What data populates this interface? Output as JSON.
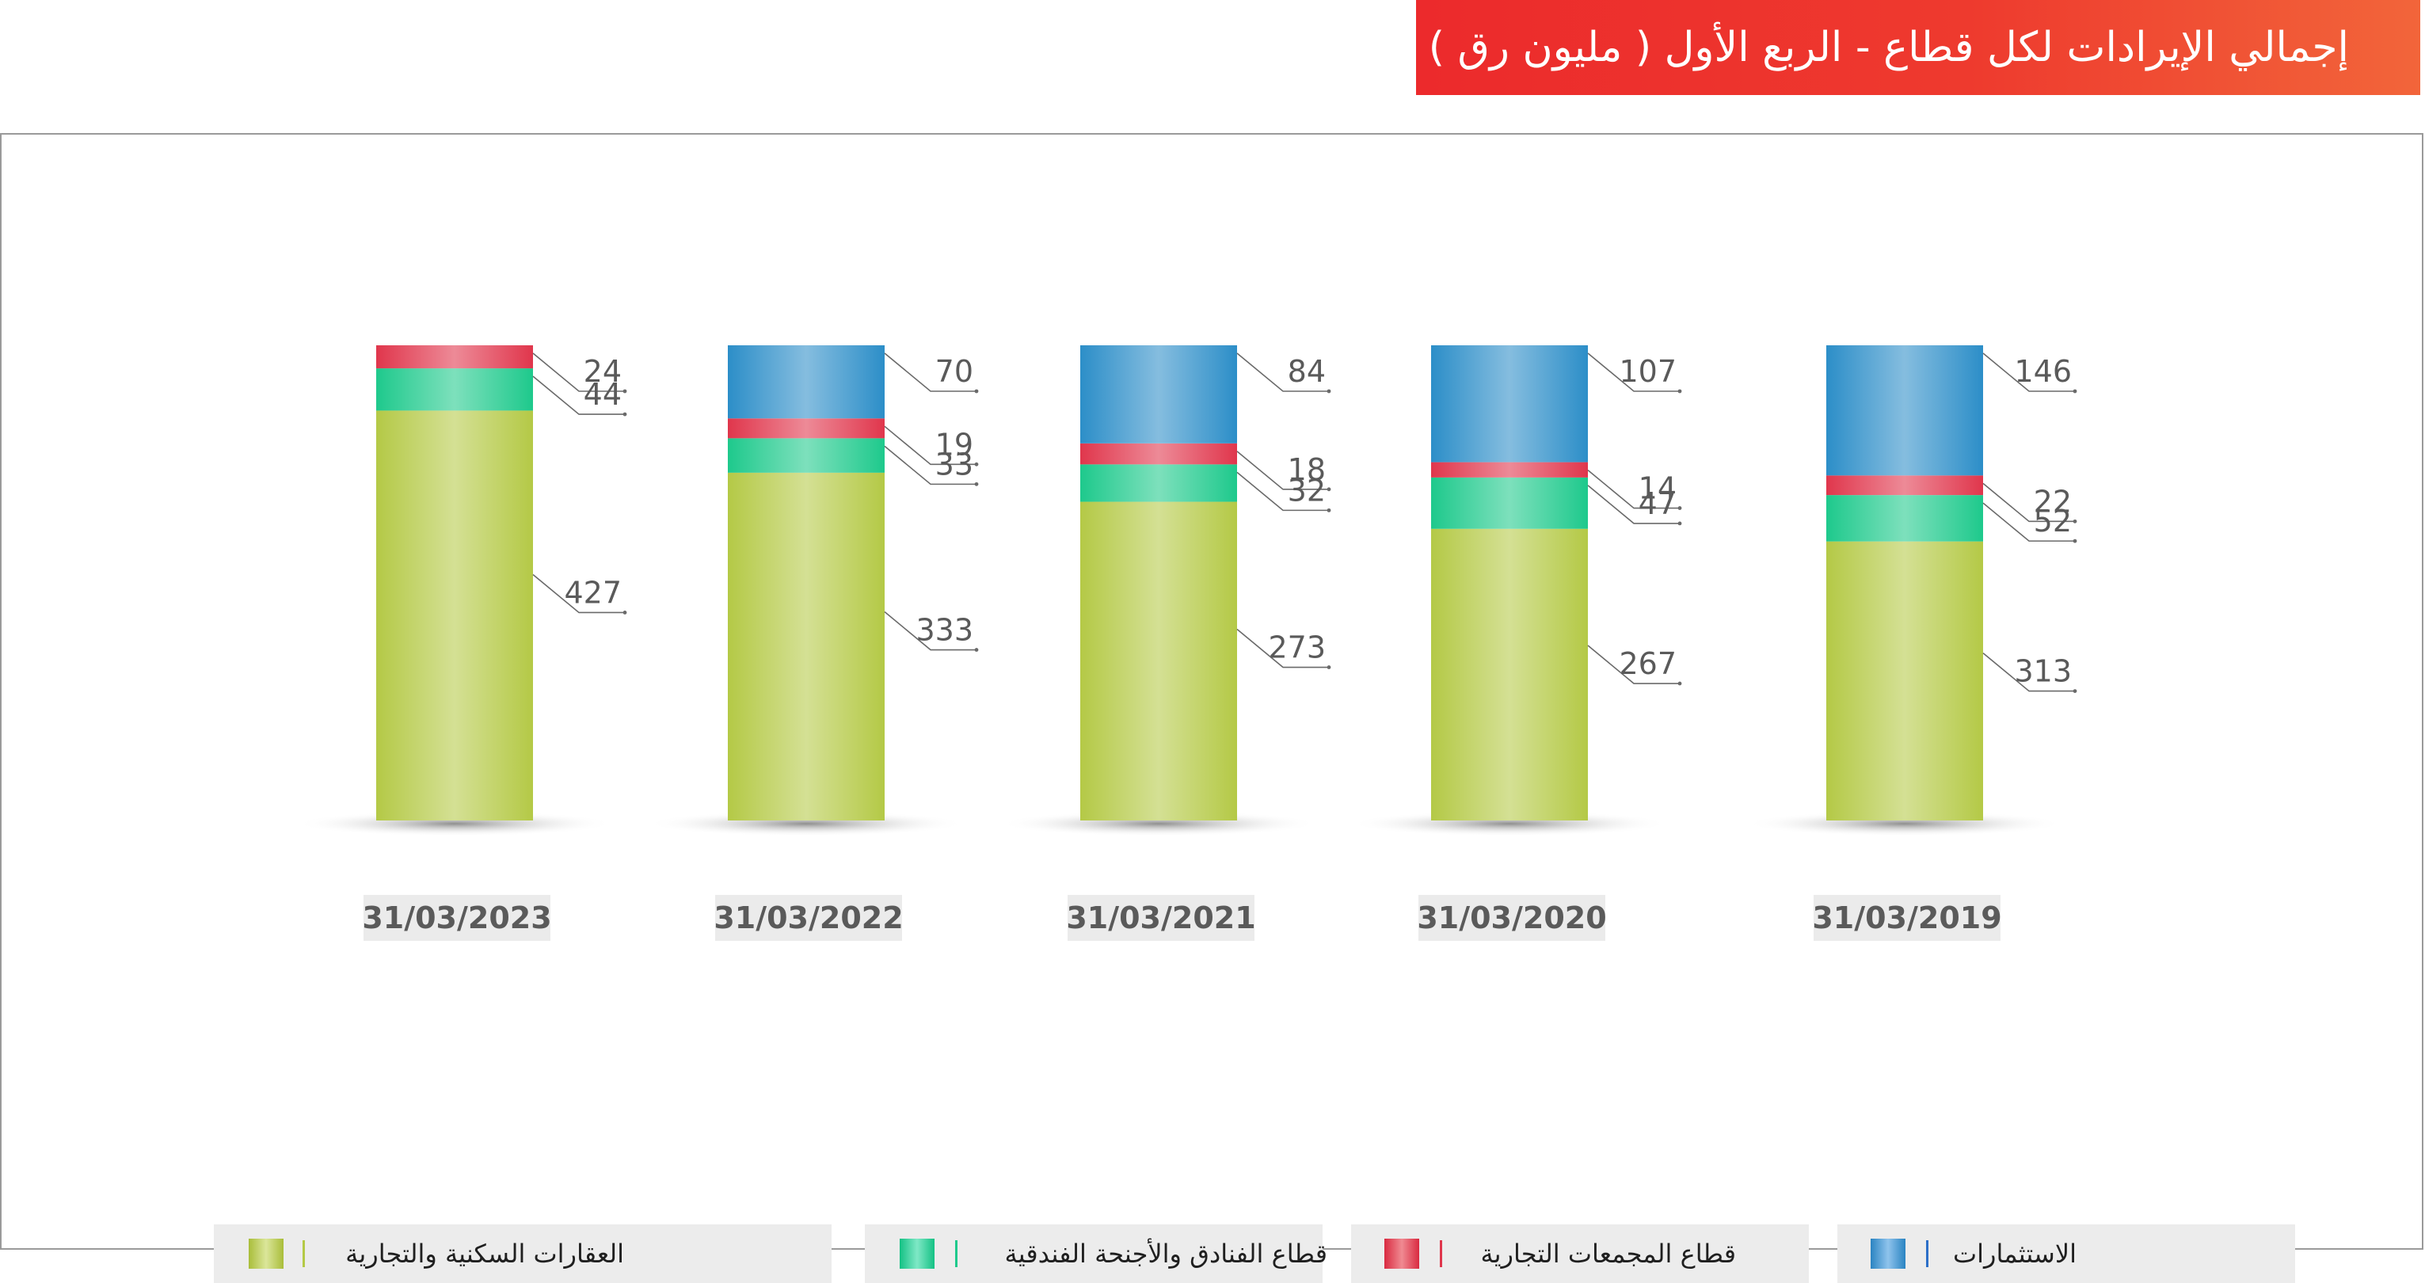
{
  "title": "إجمالي الإيرادات لكل قطاع - الربع الأول ( مليون رق )",
  "legend": [
    {
      "label": "العقارات السكنية والتجارية",
      "color": "#b4c946"
    },
    {
      "label": "قطاع الفنادق والأجنحة الفندقية",
      "color": "#1ec98c"
    },
    {
      "label": "قطاع المجمعات التجارية",
      "color": "#e0364c"
    },
    {
      "label": "الاستثمارات",
      "color": "#2c8ec8"
    }
  ],
  "chart_data": {
    "type": "bar",
    "stacked": true,
    "categories": [
      "31/03/2023",
      "31/03/2022",
      "31/03/2021",
      "31/03/2020",
      "31/03/2019"
    ],
    "series": [
      {
        "name": "العقارات السكنية والتجارية",
        "values": [
          427,
          333,
          273,
          267,
          313
        ],
        "color": "#b4c946"
      },
      {
        "name": "قطاع الفنادق والأجنحة الفندقية",
        "values": [
          44,
          33,
          32,
          47,
          52
        ],
        "color": "#1ec98c"
      },
      {
        "name": "قطاع المجمعات التجارية",
        "values": [
          24,
          19,
          18,
          14,
          22
        ],
        "color": "#e0364c"
      },
      {
        "name": "الاستثمارات",
        "values": [
          null,
          70,
          84,
          107,
          146
        ],
        "color": "#2c8ec8"
      }
    ],
    "title": "إجمالي الإيرادات لكل قطاع - الربع الأول ( مليون رق )",
    "xlabel": "",
    "ylabel": "",
    "grid": false,
    "legend_position": "bottom"
  }
}
